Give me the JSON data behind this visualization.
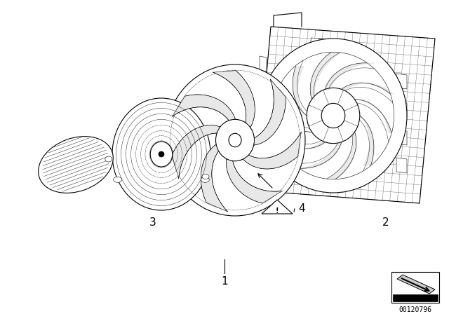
{
  "background_color": "#ffffff",
  "line_color": "#000000",
  "label_1": "1",
  "label_2": "2",
  "label_3": "3",
  "label_4": "4",
  "watermark": "00120796",
  "font_size_labels": 11,
  "font_size_watermark": 7,
  "fig_width": 6.4,
  "fig_height": 4.48,
  "dpi": 100
}
